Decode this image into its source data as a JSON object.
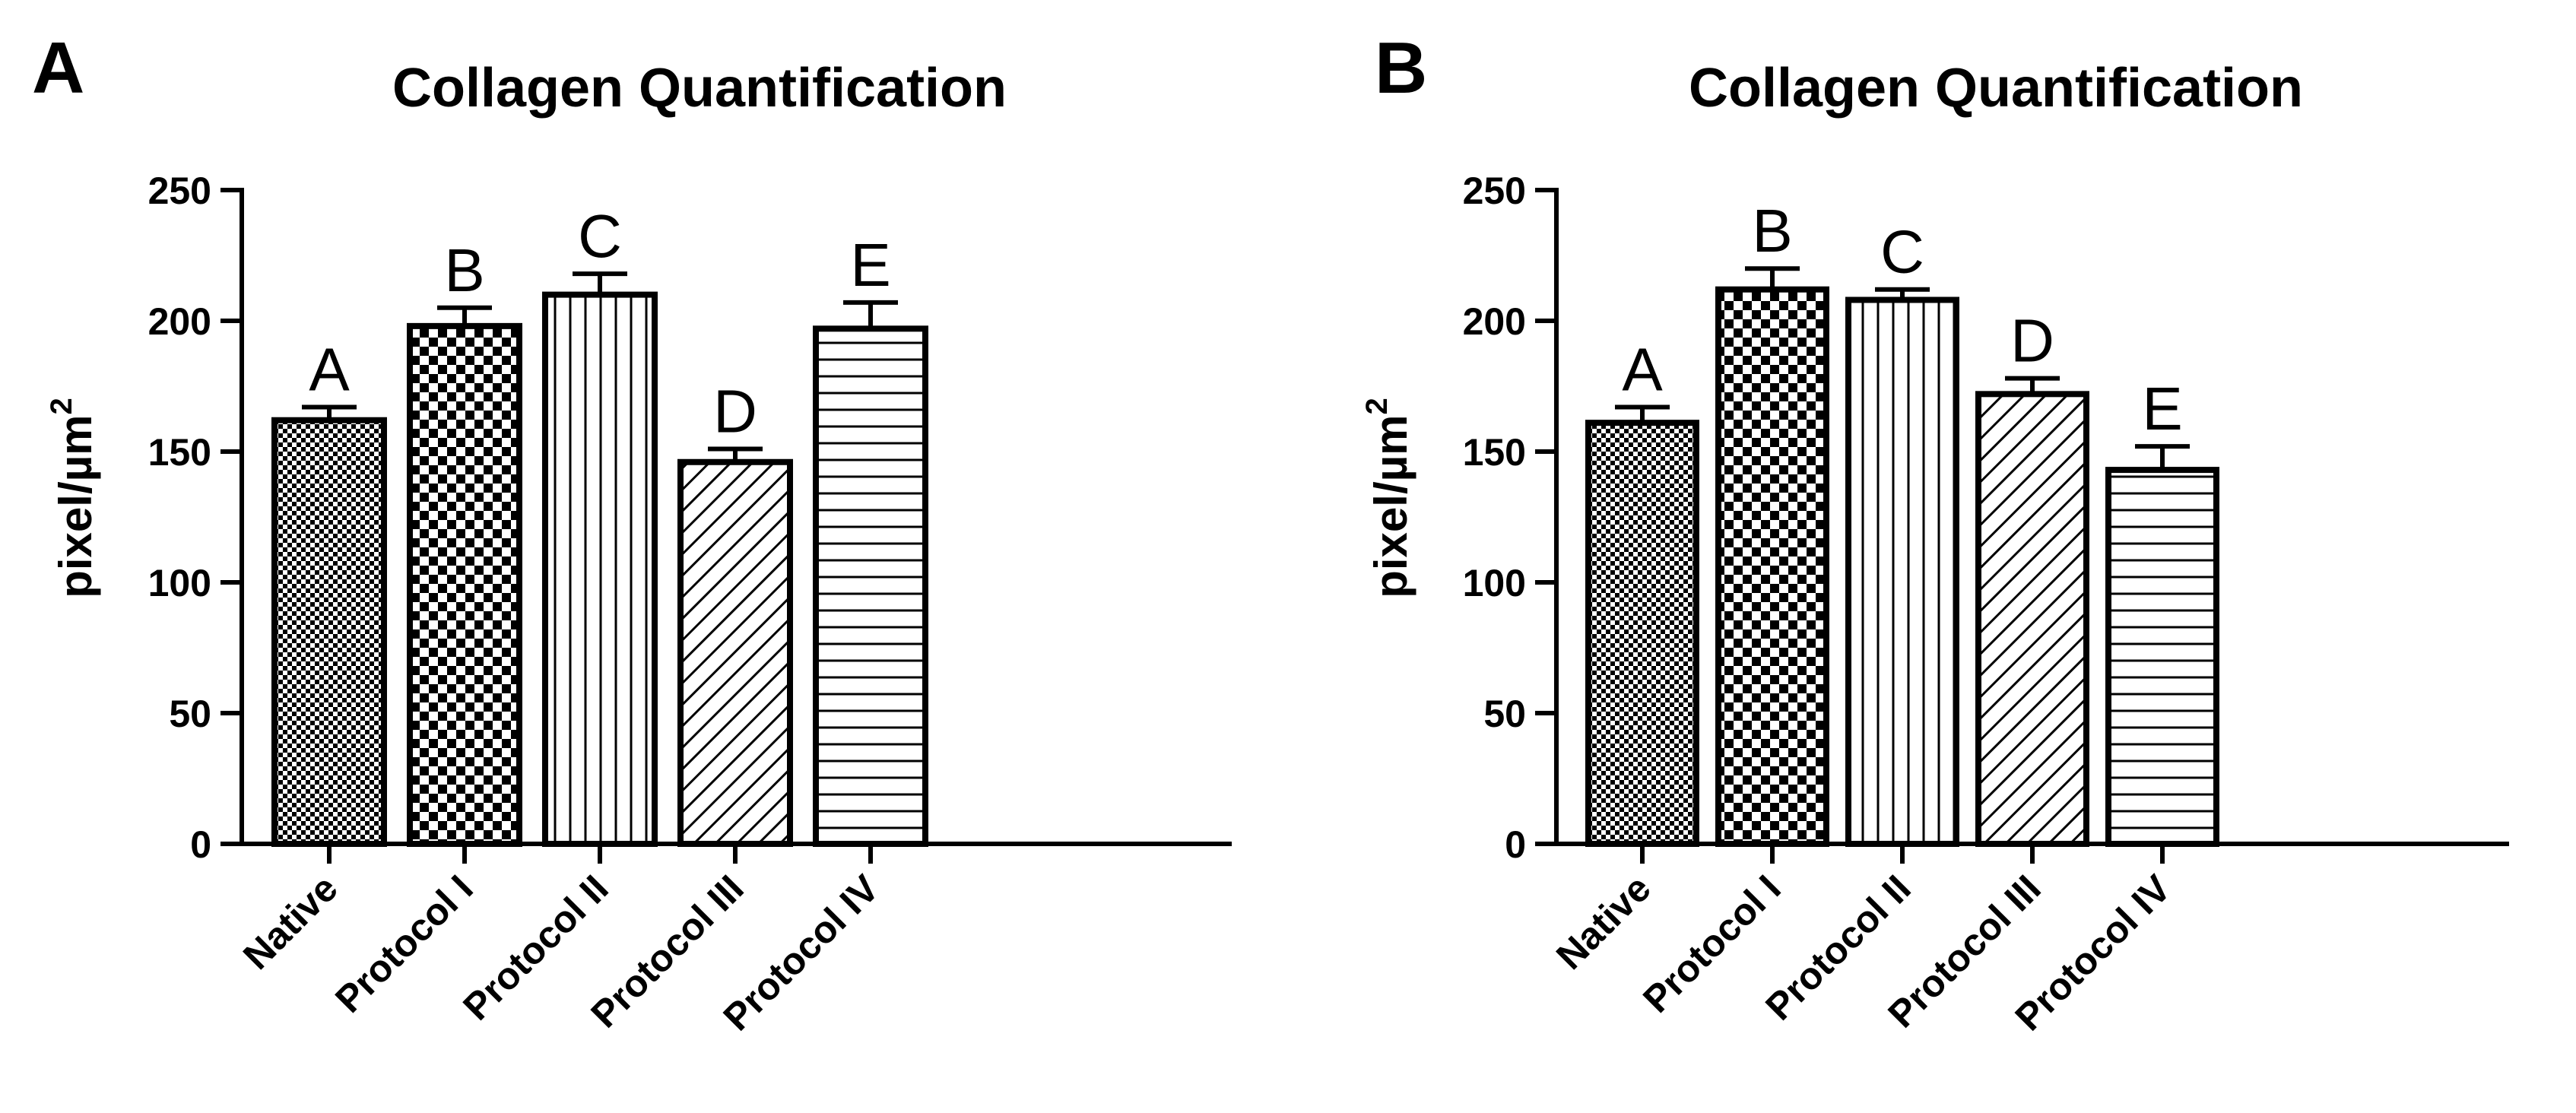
{
  "chart_data": [
    {
      "panel_letter": "A",
      "type": "bar",
      "title": "Collagen Quantification",
      "xlabel": "",
      "ylabel_main": "pixel/µm",
      "ylabel_superscript": "2",
      "ylim": [
        0,
        250
      ],
      "yticks": [
        "0",
        "50",
        "100",
        "150",
        "200",
        "250"
      ],
      "categories": [
        "Native",
        "Protocol I",
        "Protocol II",
        "Protocol III",
        "Protocol IV"
      ],
      "values": [
        162,
        198,
        210,
        146,
        197
      ],
      "errors": [
        5,
        7,
        8,
        5,
        10
      ],
      "letters": [
        "A",
        "B",
        "C",
        "D",
        "E"
      ],
      "patterns": [
        "small-checker",
        "large-checker",
        "vertical-lines",
        "diagonal-lines",
        "horizontal-lines"
      ]
    },
    {
      "panel_letter": "B",
      "type": "bar",
      "title": "Collagen Quantification",
      "xlabel": "",
      "ylabel_main": "pixel/µm",
      "ylabel_superscript": "2",
      "ylim": [
        0,
        250
      ],
      "yticks": [
        "0",
        "50",
        "100",
        "150",
        "200",
        "250"
      ],
      "categories": [
        "Native",
        "Protocol I",
        "Protocol II",
        "Protocol III",
        "Protocol IV"
      ],
      "values": [
        161,
        212,
        208,
        172,
        143
      ],
      "errors": [
        6,
        8,
        4,
        6,
        9
      ],
      "letters": [
        "A",
        "B",
        "C",
        "D",
        "E"
      ],
      "patterns": [
        "small-checker",
        "large-checker",
        "vertical-lines",
        "diagonal-lines",
        "horizontal-lines"
      ]
    }
  ]
}
